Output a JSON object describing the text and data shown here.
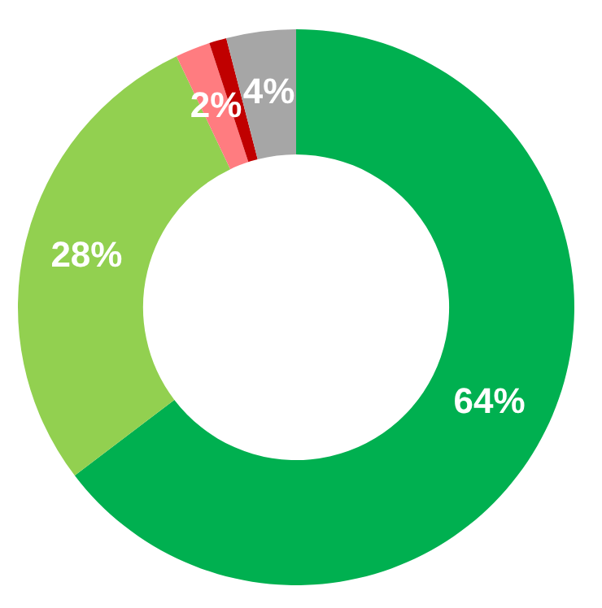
{
  "chart_data": {
    "type": "donut",
    "categories": [
      null,
      null,
      null,
      null,
      null
    ],
    "values": [
      64,
      28,
      2,
      1,
      4
    ],
    "colors": [
      "#00b050",
      "#92d050",
      "#ff7c80",
      "#c00000",
      "#a6a6a6"
    ],
    "value_labels": [
      "64%",
      "28%",
      "2%",
      null,
      "4%"
    ],
    "legend": false
  }
}
